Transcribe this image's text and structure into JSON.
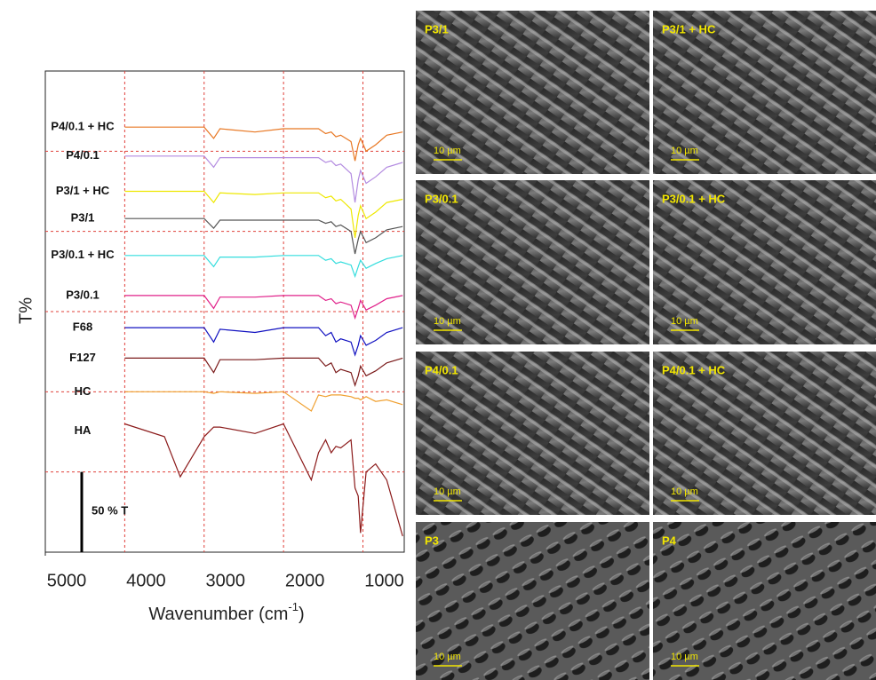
{
  "chart_data": {
    "type": "line",
    "xlabel": {
      "text": "Wavenumber (cm",
      "superscript": "-1",
      "suffix": ")"
    },
    "ylabel": "T%",
    "xlim": [
      5000,
      480
    ],
    "xticks": [
      5000,
      4000,
      3000,
      2000,
      1000
    ],
    "ylim": [
      0,
      300
    ],
    "yticks": [
      50,
      100,
      150,
      200,
      250
    ],
    "ytick_labels": false,
    "grid": true,
    "scale_bar": {
      "length": 50,
      "label": "50 % T"
    },
    "x": [
      4000,
      3500,
      3300,
      3000,
      2880,
      2800,
      2360,
      2000,
      1650,
      1560,
      1470,
      1400,
      1340,
      1280,
      1150,
      1100,
      1060,
      1030,
      960,
      840,
      700,
      500
    ],
    "series": [
      {
        "name": "P4/0.1 + HC",
        "color": "#e87722",
        "values": [
          265,
          265,
          265,
          265,
          258,
          264,
          262,
          264,
          264,
          264,
          261,
          262,
          259,
          260,
          256,
          244,
          254,
          258,
          250,
          254,
          260,
          262
        ]
      },
      {
        "name": "P4/0.1",
        "color": "#b38be0",
        "values": [
          247,
          247,
          247,
          247,
          240,
          246,
          246,
          246,
          246,
          246,
          243,
          244,
          241,
          242,
          236,
          218,
          232,
          238,
          230,
          234,
          240,
          243
        ]
      },
      {
        "name": "P3/1 + HC",
        "color": "#eee800",
        "values": [
          225,
          225,
          225,
          225,
          218,
          224,
          223,
          224,
          224,
          224,
          221,
          222,
          219,
          220,
          214,
          196,
          210,
          216,
          208,
          212,
          218,
          220
        ]
      },
      {
        "name": "P3/1",
        "color": "#555555",
        "values": [
          208,
          208,
          208,
          208,
          202,
          207,
          207,
          207,
          207,
          207,
          205,
          206,
          203,
          204,
          200,
          186,
          195,
          200,
          193,
          196,
          201,
          203
        ]
      },
      {
        "name": "P3/0.1 + HC",
        "color": "#33dddd",
        "values": [
          185,
          185,
          185,
          185,
          178,
          184,
          184,
          185,
          185,
          185,
          182,
          183,
          180,
          181,
          179,
          172,
          178,
          182,
          177,
          180,
          183,
          185
        ]
      },
      {
        "name": "P3/0.1",
        "color": "#e0208a",
        "values": [
          160,
          160,
          160,
          160,
          152,
          159,
          159,
          160,
          160,
          160,
          157,
          158,
          155,
          156,
          154,
          146,
          152,
          157,
          151,
          154,
          158,
          160
        ]
      },
      {
        "name": "F68",
        "color": "#1010c0",
        "values": [
          140,
          140,
          140,
          140,
          131,
          139,
          137,
          140,
          140,
          140,
          135,
          137,
          131,
          133,
          131,
          123,
          129,
          135,
          129,
          132,
          137,
          140
        ]
      },
      {
        "name": "F127",
        "color": "#7a1a1a",
        "values": [
          121,
          121,
          121,
          121,
          112,
          120,
          120,
          121,
          121,
          121,
          116,
          118,
          112,
          114,
          112,
          104,
          110,
          116,
          110,
          113,
          118,
          121
        ]
      },
      {
        "name": "HC",
        "color": "#f0a030",
        "values": [
          100,
          100,
          100,
          100,
          99,
          100,
          99,
          100,
          88,
          98,
          97,
          98,
          98,
          98,
          97,
          96,
          96,
          95,
          97,
          94,
          95,
          92
        ]
      },
      {
        "name": "HA",
        "color": "#8b1a1a",
        "values": [
          80,
          72,
          47,
          72,
          78,
          78,
          74,
          80,
          45,
          62,
          70,
          62,
          66,
          65,
          70,
          40,
          35,
          12,
          50,
          55,
          45,
          10
        ]
      }
    ]
  },
  "images": [
    {
      "label": "P3/1",
      "scale": "10 µm"
    },
    {
      "label": "P3/1 + HC",
      "scale": "10 µm"
    },
    {
      "label": "P3/0.1",
      "scale": "10 µm"
    },
    {
      "label": "P3/0.1 + HC",
      "scale": "10 µm"
    },
    {
      "label": "P4/0.1",
      "scale": "10 µm"
    },
    {
      "label": "P4/0.1 + HC",
      "scale": "10 µm"
    },
    {
      "label": "P3",
      "scale": "10 µm"
    },
    {
      "label": "P4",
      "scale": "10 µm"
    }
  ]
}
